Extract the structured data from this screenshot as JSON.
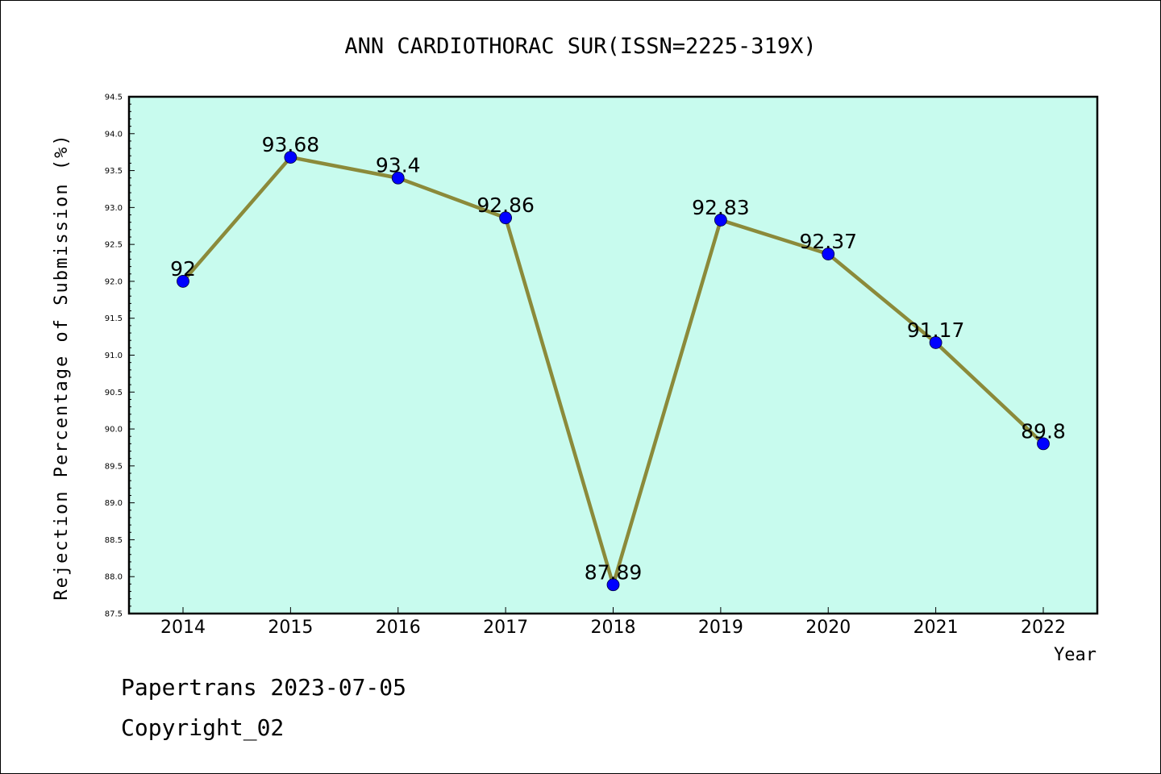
{
  "chart_data": {
    "type": "line",
    "title": "ANN CARDIOTHORAC SUR(ISSN=2225-319X)",
    "xlabel": "Year",
    "ylabel": "Rejection Percentage of Submission (%)",
    "categories": [
      "2014",
      "2015",
      "2016",
      "2017",
      "2018",
      "2019",
      "2020",
      "2021",
      "2022"
    ],
    "series": [
      {
        "values": [
          92,
          93.68,
          93.4,
          92.86,
          87.89,
          92.83,
          92.37,
          91.17,
          89.8
        ],
        "labels": [
          "92",
          "93.68",
          "93.4",
          "92.86",
          "87.89",
          "92.83",
          "92.37",
          "91.17",
          "89.8"
        ],
        "line_color": "#8b8a3a",
        "marker_color": "#0000ff"
      }
    ],
    "yticks": [
      "87.5",
      "88.0",
      "88.5",
      "89.0",
      "89.5",
      "90.0",
      "90.5",
      "91.0",
      "91.5",
      "92.0",
      "92.5",
      "93.0",
      "93.5",
      "94.0",
      "94.5"
    ],
    "ylim": [
      87.5,
      94.5
    ],
    "plot_background": "#c8fbee",
    "grid": false,
    "legend": false
  },
  "footer": {
    "line1": "Papertrans 2023-07-05",
    "line2": "Copyright_02"
  }
}
